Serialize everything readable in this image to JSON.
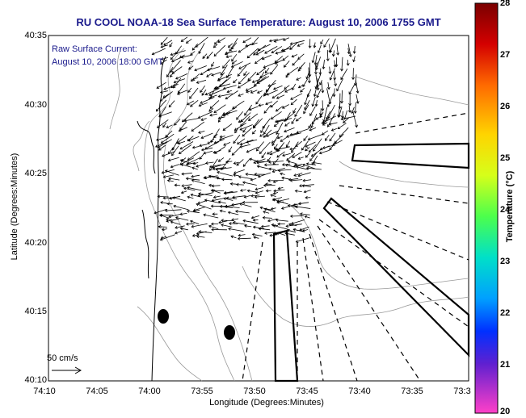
{
  "title": "RU COOL  NOAA-18  Sea Surface Temperature:  August 10, 2006 1755 GMT",
  "annotation": {
    "line1": "Raw Surface Current:",
    "line2": "August 10, 2006 18:00 GMT"
  },
  "axes": {
    "xlabel": "Longitude (Degrees:Minutes)",
    "ylabel": "Latitude (Degrees:Minutes)",
    "xticks": [
      "74:10",
      "74:05",
      "74:00",
      "73:55",
      "73:50",
      "73:45",
      "73:40",
      "73:35",
      "73:3"
    ],
    "yticks": [
      "40:35",
      "40:30",
      "40:25",
      "40:20",
      "40:15",
      "40:10"
    ]
  },
  "colorbar": {
    "label": "Temperature (°C)",
    "ticks": [
      "28",
      "27",
      "26",
      "25",
      "24",
      "23",
      "22",
      "21",
      "20"
    ]
  },
  "scale_label": "50 cm/s",
  "colors": {
    "title": "#1a1a8c",
    "coast": "#000000",
    "bathymetry": "#888888",
    "arrows": "#000000"
  }
}
